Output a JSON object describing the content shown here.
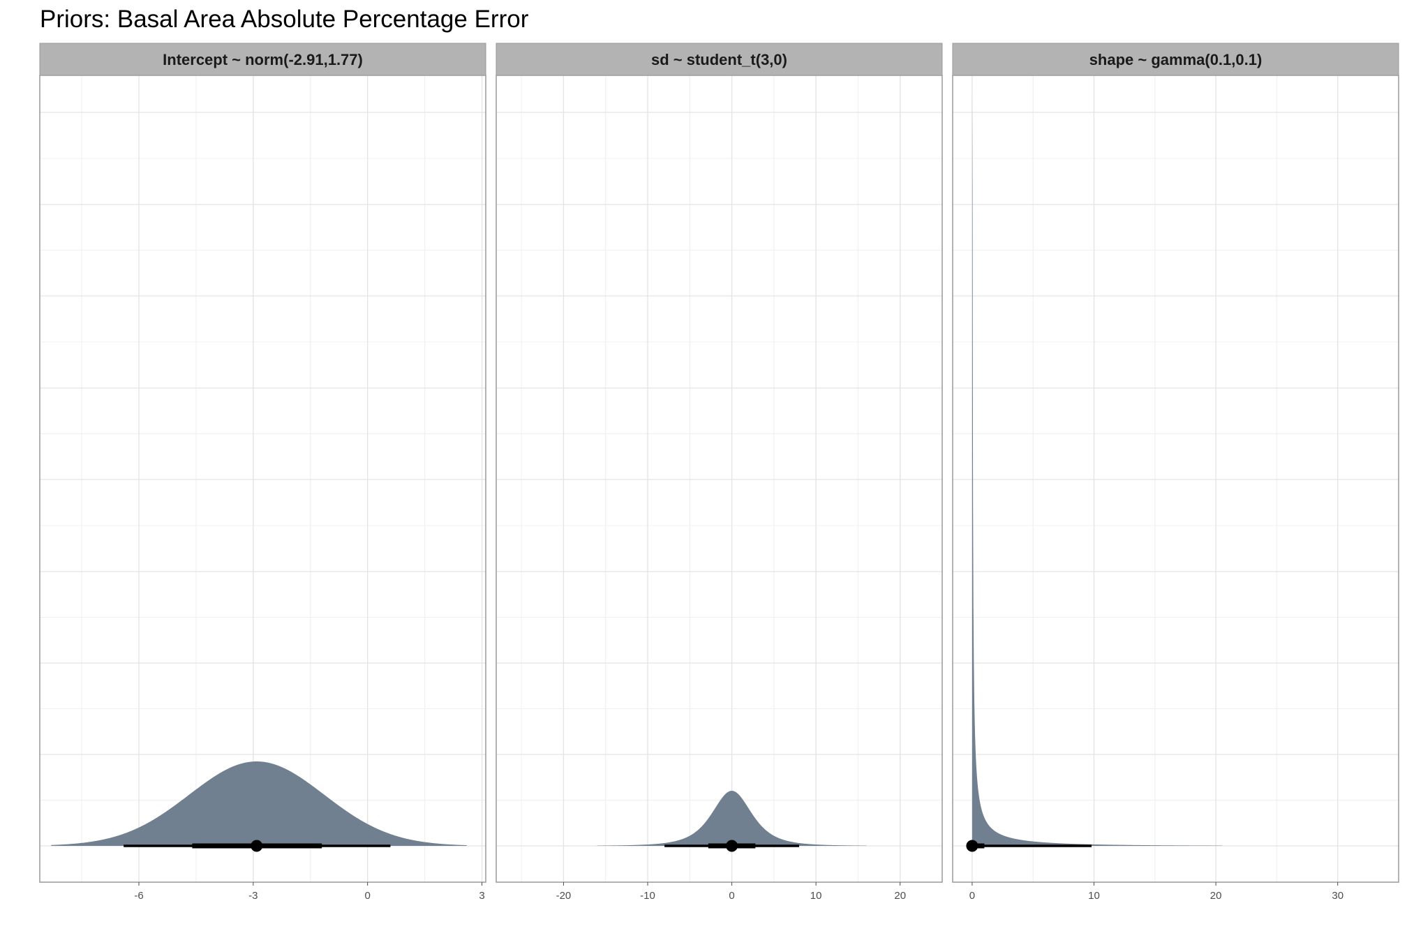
{
  "title": "Priors: Basal Area Absolute Percentage Error",
  "chart_data": [
    {
      "type": "area",
      "facet": "Intercept ~ norm(-2.91,1.77)",
      "xlim": [
        -8.6,
        3.1
      ],
      "x_ticks": [
        -6,
        -3,
        0,
        3
      ],
      "x_tick_labels": [
        "-6",
        "-3",
        "0",
        "3"
      ],
      "distribution": {
        "family": "normal",
        "mean": -2.91,
        "sd": 1.77
      },
      "density_support": [
        -8.3,
        2.6
      ],
      "point": -2.91,
      "interval_66": [
        -4.6,
        -1.2
      ],
      "interval_95": [
        -6.4,
        0.6
      ],
      "grid": true,
      "fill_color": "#708090"
    },
    {
      "type": "area",
      "facet": "sd ~ student_t(3,0)",
      "xlim": [
        -28,
        25
      ],
      "x_ticks": [
        -20,
        -10,
        0,
        10,
        20
      ],
      "x_tick_labels": [
        "-20",
        "-10",
        "0",
        "10",
        "20"
      ],
      "distribution": {
        "family": "student_t",
        "df": 3,
        "location": 0,
        "scale": 2.5
      },
      "density_support": [
        -16,
        16
      ],
      "point": 0,
      "interval_66": [
        -2.8,
        2.8
      ],
      "interval_95": [
        -8,
        8
      ],
      "grid": true,
      "fill_color": "#708090"
    },
    {
      "type": "area",
      "facet": "shape ~ gamma(0.1,0.1)",
      "xlim": [
        -1.6,
        35
      ],
      "x_ticks": [
        0,
        10,
        20,
        30
      ],
      "x_tick_labels": [
        "0",
        "10",
        "20",
        "30"
      ],
      "distribution": {
        "family": "gamma",
        "shape": 0.1,
        "rate": 0.1
      },
      "density_support": [
        0,
        20.5
      ],
      "point": 0,
      "interval_66": [
        0,
        1
      ],
      "interval_95": [
        0,
        9.8
      ],
      "grid": true,
      "fill_color": "#708090"
    }
  ]
}
